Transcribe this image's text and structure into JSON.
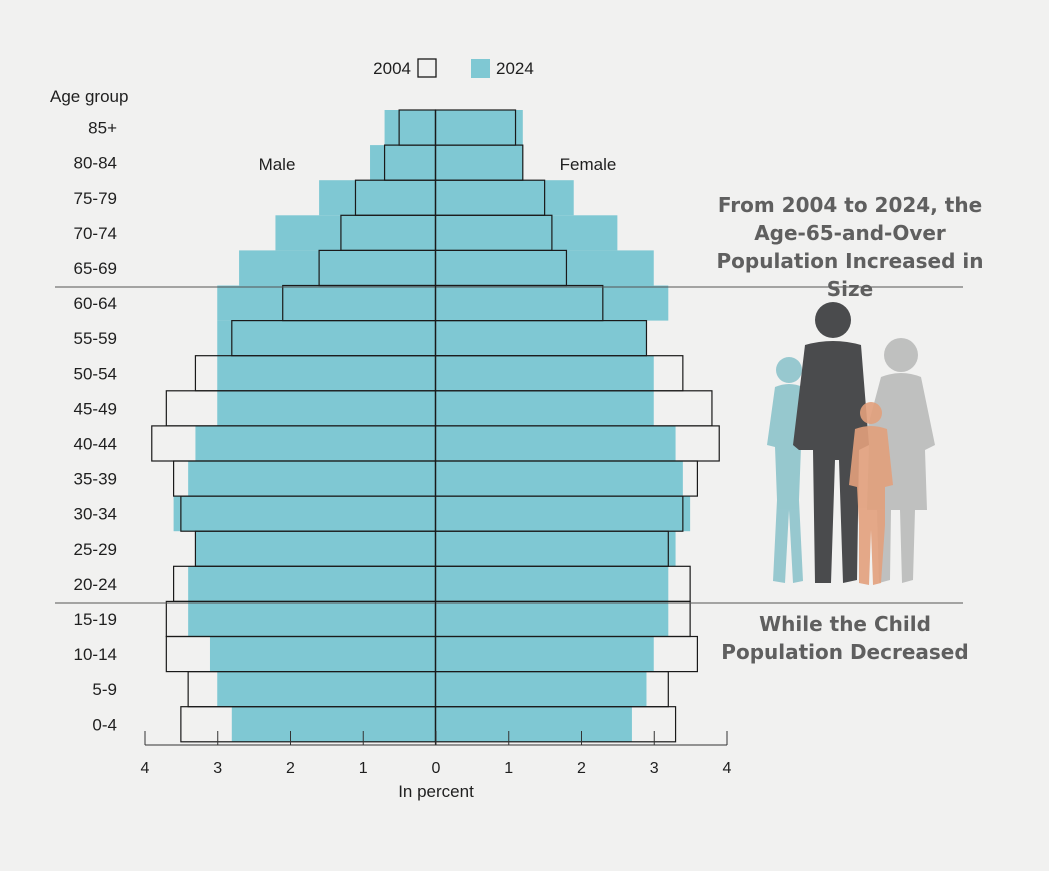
{
  "chart_data": {
    "type": "population-pyramid",
    "age_axis_title": "Age group",
    "age_groups": [
      "85+",
      "80-84",
      "75-79",
      "70-74",
      "65-69",
      "60-64",
      "55-59",
      "50-54",
      "45-49",
      "40-44",
      "35-39",
      "30-34",
      "25-29",
      "20-24",
      "15-19",
      "10-14",
      "5-9",
      "0-4"
    ],
    "series": [
      {
        "name": "2004",
        "style": "outline",
        "male": [
          0.5,
          0.7,
          1.1,
          1.3,
          1.6,
          2.1,
          2.8,
          3.3,
          3.7,
          3.9,
          3.6,
          3.5,
          3.3,
          3.6,
          3.7,
          3.7,
          3.4,
          3.5
        ],
        "female": [
          1.1,
          1.2,
          1.5,
          1.6,
          1.8,
          2.3,
          2.9,
          3.4,
          3.8,
          3.9,
          3.6,
          3.4,
          3.2,
          3.5,
          3.5,
          3.6,
          3.2,
          3.3
        ]
      },
      {
        "name": "2024",
        "style": "filled",
        "color": "#7fc8d3",
        "male": [
          0.7,
          0.9,
          1.6,
          2.2,
          2.7,
          3.0,
          3.0,
          3.0,
          3.0,
          3.3,
          3.4,
          3.6,
          3.3,
          3.4,
          3.4,
          3.1,
          3.0,
          2.8
        ],
        "female": [
          1.2,
          1.2,
          1.9,
          2.5,
          3.0,
          3.2,
          2.9,
          3.0,
          3.0,
          3.3,
          3.4,
          3.5,
          3.3,
          3.2,
          3.2,
          3.0,
          2.9,
          2.7
        ]
      }
    ],
    "side_labels": {
      "left": "Male",
      "right": "Female"
    },
    "x_axis": {
      "label": "In percent",
      "range": [
        0,
        4
      ],
      "ticks": [
        4,
        3,
        2,
        1,
        0,
        1,
        2,
        3,
        4
      ]
    },
    "legend": {
      "position": "top",
      "entries": [
        "2004",
        "2024"
      ]
    }
  },
  "annotations": {
    "top": "From 2004 to 2024, the Age-65-and-Over Population Increased in Size",
    "bottom": "While the Child Population Decreased"
  },
  "colors": {
    "fill_2024": "#7fc8d3",
    "outline_2004": "#1a1a1a",
    "annotation_text": "#5f5f5f",
    "background": "#f1f1f0"
  }
}
